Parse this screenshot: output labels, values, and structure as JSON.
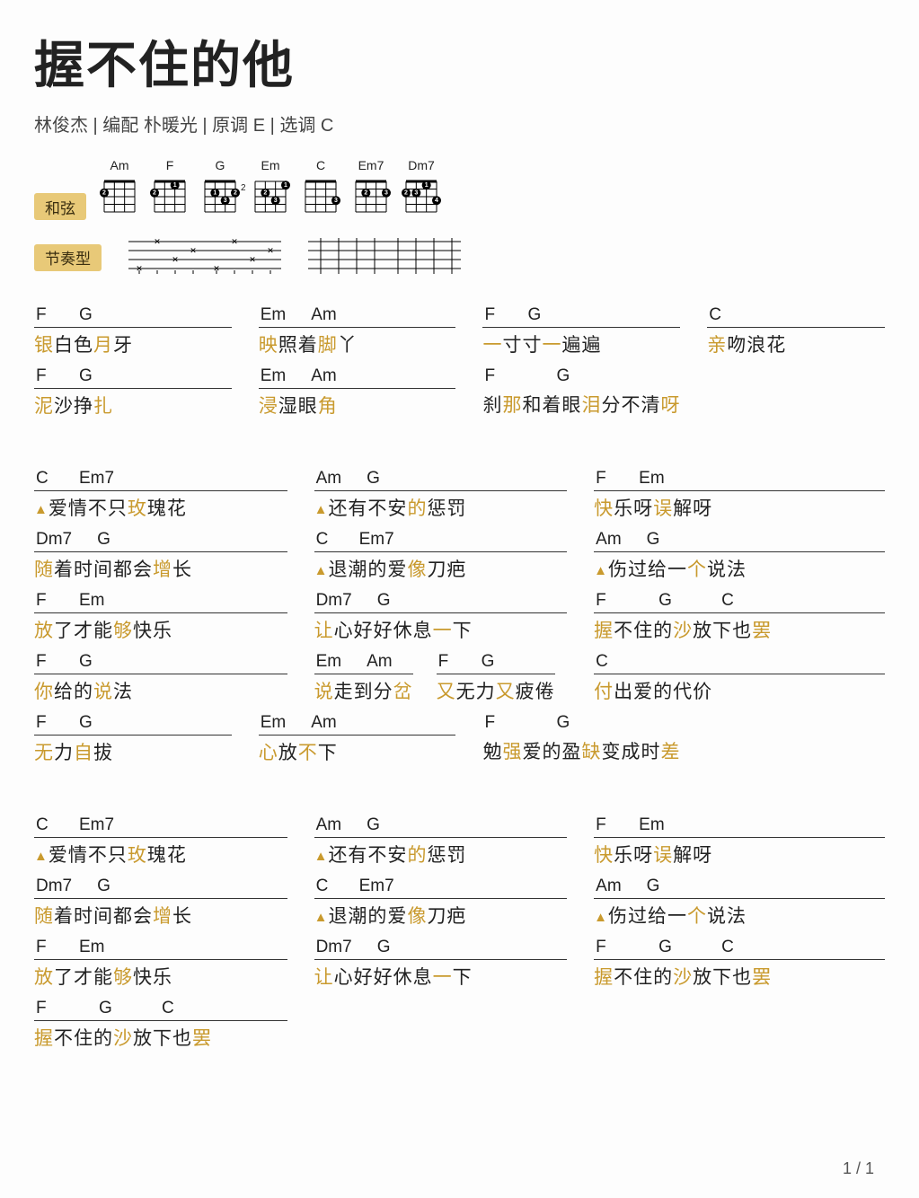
{
  "title": "握不住的他",
  "subtitle": "林俊杰 | 编配 朴暖光 | 原调 E | 选调 C",
  "labels": {
    "chords": "和弦",
    "rhythm": "节奏型"
  },
  "accent_color": "#c99a2e",
  "badge_bg": "#e8c978",
  "chord_diagrams": [
    {
      "name": "Am",
      "dots": [
        {
          "s": 4,
          "f": 2,
          "n": "2"
        }
      ]
    },
    {
      "name": "F",
      "dots": [
        {
          "s": 2,
          "f": 1,
          "n": "1"
        },
        {
          "s": 4,
          "f": 2,
          "n": "2"
        }
      ]
    },
    {
      "name": "G",
      "dots": [
        {
          "s": 3,
          "f": 2,
          "n": "1"
        },
        {
          "s": 1,
          "f": 2,
          "n": "2"
        },
        {
          "s": 2,
          "f": 3,
          "n": "3"
        }
      ]
    },
    {
      "name": "Em",
      "fret_label": "2",
      "dots": [
        {
          "s": 1,
          "f": 1,
          "n": "1"
        },
        {
          "s": 3,
          "f": 2,
          "n": "2"
        },
        {
          "s": 2,
          "f": 3,
          "n": "3"
        }
      ]
    },
    {
      "name": "C",
      "dots": [
        {
          "s": 1,
          "f": 3,
          "n": "3"
        }
      ]
    },
    {
      "name": "Em7",
      "dots": [
        {
          "s": 3,
          "f": 2,
          "n": "2"
        },
        {
          "s": 1,
          "f": 2,
          "n": "3"
        }
      ]
    },
    {
      "name": "Dm7",
      "dots": [
        {
          "s": 2,
          "f": 1,
          "n": "1"
        },
        {
          "s": 4,
          "f": 2,
          "n": "2"
        },
        {
          "s": 3,
          "f": 2,
          "n": "3"
        },
        {
          "s": 1,
          "f": 3,
          "n": "4"
        }
      ]
    }
  ],
  "rhythm_patterns": [
    {
      "type": "tab",
      "beats": 8
    },
    {
      "type": "strum",
      "beats": 8
    }
  ],
  "rows": [
    [
      {
        "chords": [
          "F",
          "G"
        ],
        "lyric": "<hl>银</hl>白色<hl>月</hl>牙"
      },
      {
        "chords": [
          "Em",
          "Am"
        ],
        "lyric": "<hl>映</hl>照着<hl>脚</hl>丫"
      },
      {
        "chords": [
          "F",
          "G"
        ],
        "lyric": "<hl>一</hl>寸寸<hl>一</hl>遍遍"
      },
      {
        "chords": [
          "C"
        ],
        "lyric": "<hl>亲</hl>吻浪花"
      }
    ],
    [
      {
        "chords": [
          "F",
          "G"
        ],
        "lyric": "<hl>泥</hl>沙挣<hl>扎</hl>"
      },
      {
        "chords": [
          "Em",
          "Am"
        ],
        "lyric": "<hl>浸</hl>湿眼<hl>角</hl>"
      },
      {
        "chords": [
          "F",
          "G"
        ],
        "lyric": "刹<hl>那</hl>和着眼<hl>泪</hl>分不清<hl>呀</hl>",
        "no_border": true,
        "shift": true
      },
      {
        "chords": [
          "C"
        ],
        "lyric": "",
        "empty": true
      }
    ],
    [
      {
        "chords": [
          "C",
          "Em7"
        ],
        "lyric": "<tri>▲</tri>爱情不只<hl>玫</hl>瑰花"
      },
      {
        "chords": [
          "Am",
          "G"
        ],
        "lyric": "<tri>▲</tri>还有不安<hl>的</hl>惩罚"
      },
      {
        "chords": [
          "F",
          "Em"
        ],
        "lyric": "<hl>快</hl>乐呀<hl>误</hl>解呀"
      },
      null
    ],
    [
      {
        "chords": [
          "Dm7",
          "G"
        ],
        "lyric": "<hl>随</hl>着时间都会<hl>增</hl>长"
      },
      {
        "chords": [
          "C",
          "Em7"
        ],
        "lyric": "<tri>▲</tri>退潮的爱<hl>像</hl>刀疤"
      },
      {
        "chords": [
          "Am",
          "G"
        ],
        "lyric": "<tri>▲</tri>伤过给一<hl>个</hl>说法"
      },
      null
    ],
    [
      {
        "chords": [
          "F",
          "Em"
        ],
        "lyric": "<hl>放</hl>了才能<hl>够</hl>快乐"
      },
      {
        "chords": [
          "Dm7",
          "G"
        ],
        "lyric": "<hl>让</hl>心好好休息<hl>一</hl>下"
      },
      {
        "chords": [
          "F",
          "G",
          "C"
        ],
        "lyric": "<hl>握</hl>不住的<hl>沙</hl>放下也<hl>罢</hl>"
      },
      null
    ],
    [
      {
        "chords": [
          "F",
          "G"
        ],
        "lyric": "<hl>你</hl>给的<hl>说</hl>法"
      },
      {
        "chords": [
          "Em",
          "Am"
        ],
        "lyric": "<hl>说</hl>走到分<hl>岔</hl>",
        "subchords": [
          "F",
          "G"
        ],
        "sublyric": "<hl>又</hl>无力<hl>又</hl>疲倦"
      },
      {
        "chords": [
          "C"
        ],
        "lyric": "<hl>付</hl>出爱的代价"
      },
      null
    ],
    [
      {
        "chords": [
          "F",
          "G"
        ],
        "lyric": "<hl>无</hl>力<hl>自</hl>拔"
      },
      {
        "chords": [
          "Em",
          "Am"
        ],
        "lyric": "<hl>心</hl>放<hl>不</hl>下"
      },
      {
        "chords": [
          "F",
          "G"
        ],
        "lyric": "勉<hl>强</hl>爱的盈<hl>缺</hl>变成时<hl>差</hl>",
        "no_border": true,
        "shift": true
      },
      {
        "chords": [
          "C"
        ],
        "lyric": "",
        "empty": true
      }
    ],
    [
      {
        "chords": [
          "C",
          "Em7"
        ],
        "lyric": "<tri>▲</tri>爱情不只<hl>玫</hl>瑰花"
      },
      {
        "chords": [
          "Am",
          "G"
        ],
        "lyric": "<tri>▲</tri>还有不安<hl>的</hl>惩罚"
      },
      {
        "chords": [
          "F",
          "Em"
        ],
        "lyric": "<hl>快</hl>乐呀<hl>误</hl>解呀"
      },
      null
    ],
    [
      {
        "chords": [
          "Dm7",
          "G"
        ],
        "lyric": "<hl>随</hl>着时间都会<hl>增</hl>长"
      },
      {
        "chords": [
          "C",
          "Em7"
        ],
        "lyric": "<tri>▲</tri>退潮的爱<hl>像</hl>刀疤"
      },
      {
        "chords": [
          "Am",
          "G"
        ],
        "lyric": "<tri>▲</tri>伤过给一<hl>个</hl>说法"
      },
      null
    ],
    [
      {
        "chords": [
          "F",
          "Em"
        ],
        "lyric": "<hl>放</hl>了才能<hl>够</hl>快乐"
      },
      {
        "chords": [
          "Dm7",
          "G"
        ],
        "lyric": "<hl>让</hl>心好好休息<hl>一</hl>下"
      },
      {
        "chords": [
          "F",
          "G",
          "C"
        ],
        "lyric": "<hl>握</hl>不住的<hl>沙</hl>放下也<hl>罢</hl>"
      },
      null
    ],
    [
      {
        "chords": [
          "F",
          "G",
          "C"
        ],
        "lyric": "<hl>握</hl>不住的<hl>沙</hl>放下也<hl>罢</hl>"
      },
      null,
      null,
      null
    ]
  ],
  "page": "1 / 1"
}
